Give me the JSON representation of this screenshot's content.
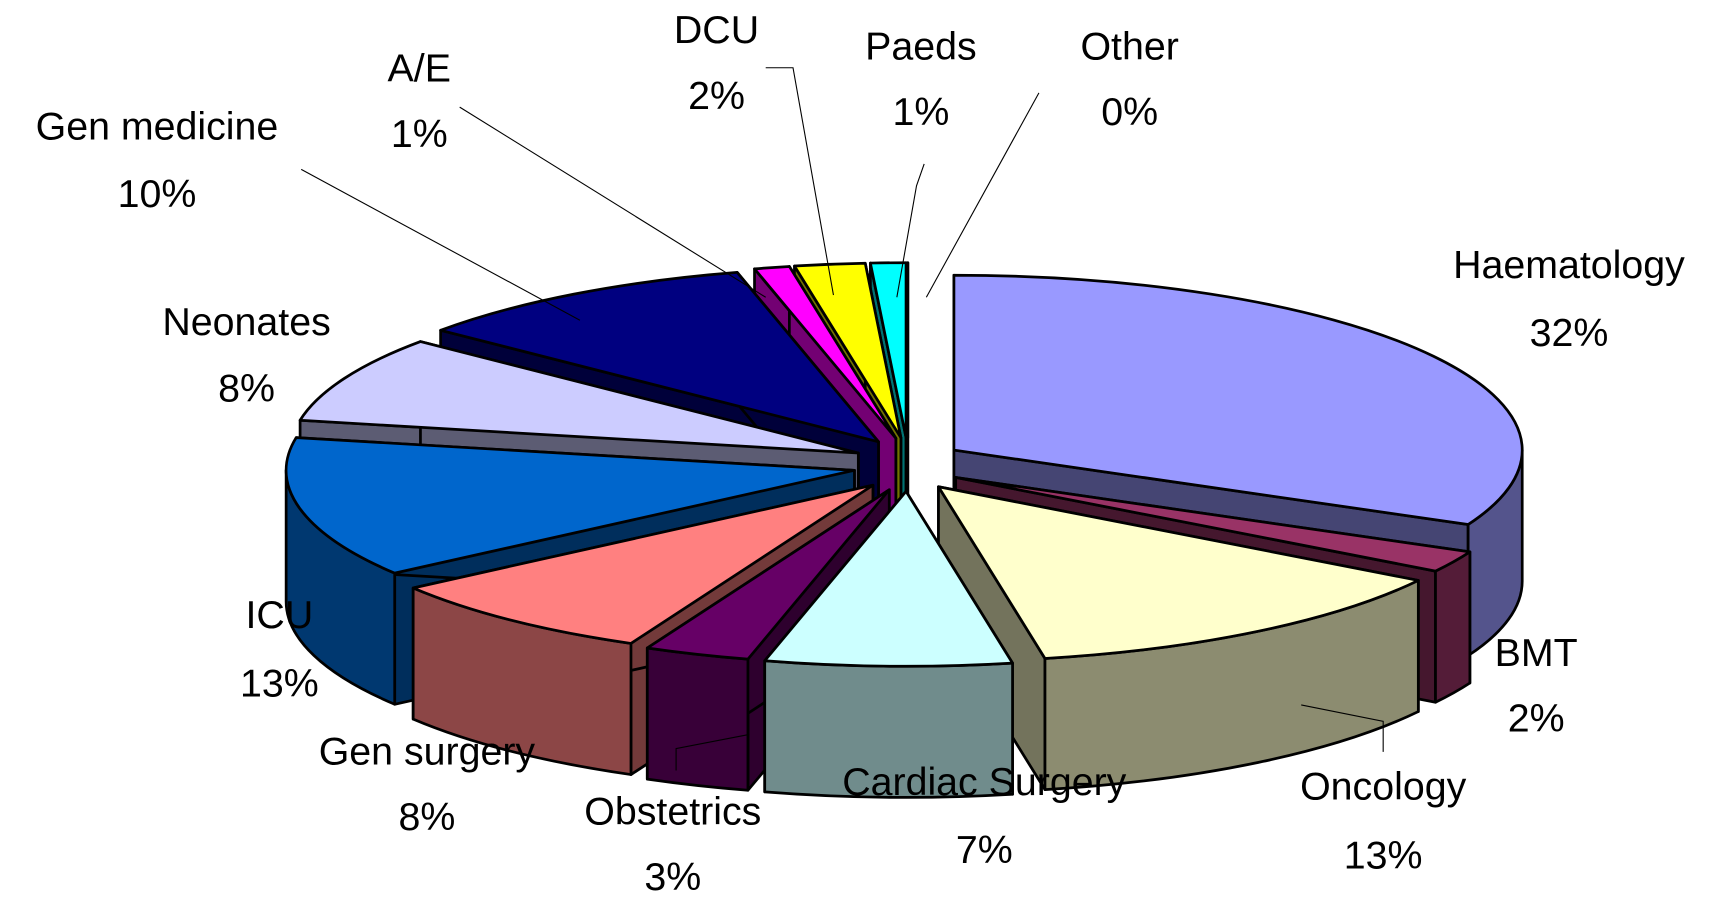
{
  "chart_data": {
    "type": "pie3d",
    "categories": [
      "Haematology",
      "BMT",
      "Oncology",
      "Cardiac Surgery",
      "Obstetrics",
      "Gen surgery",
      "ICU",
      "Neonates",
      "Gen medicine",
      "A/E",
      "DCU",
      "Paeds",
      "Other"
    ],
    "values": [
      32,
      2,
      13,
      7,
      3,
      8,
      13,
      8,
      10,
      1,
      2,
      1,
      0
    ],
    "value_labels": [
      "32%",
      "2%",
      "13%",
      "7%",
      "3%",
      "8%",
      "13%",
      "8%",
      "10%",
      "1%",
      "2%",
      "1%",
      "0%"
    ],
    "colors": [
      "#9999ff",
      "#993366",
      "#ffffcc",
      "#ccffff",
      "#660066",
      "#ff8080",
      "#0066cc",
      "#ccccff",
      "#000080",
      "#ff00ff",
      "#ffff00",
      "#00ffff",
      "#800080"
    ]
  }
}
